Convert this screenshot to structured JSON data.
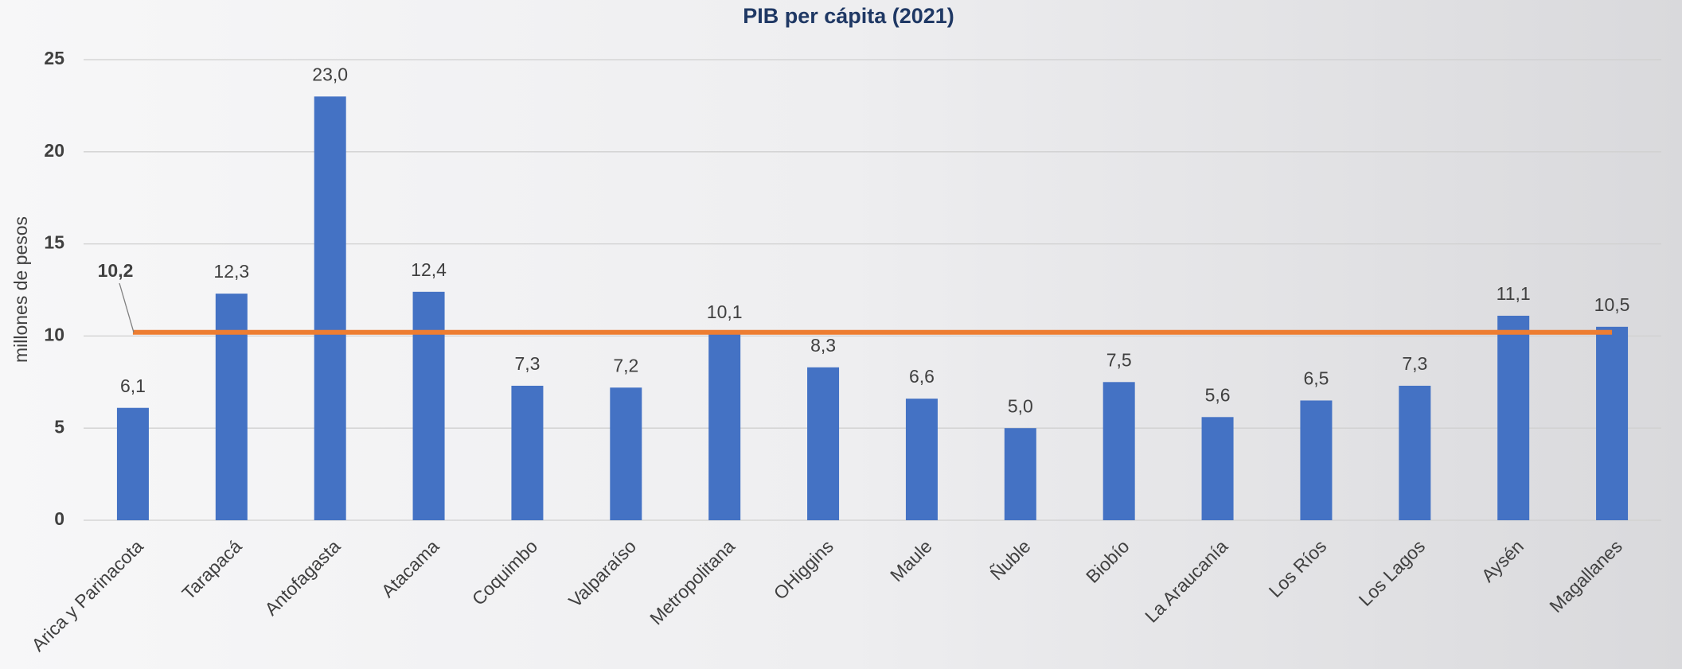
{
  "chart_data": {
    "type": "bar",
    "title": "PIB per cápita (2021)",
    "y_label": "millones de pesos",
    "categories": [
      "Arica y Parinacota",
      "Tarapacá",
      "Antofagasta",
      "Atacama",
      "Coquimbo",
      "Valparaíso",
      "Metropolitana",
      "OHiggins",
      "Maule",
      "Ñuble",
      "Biobío",
      "La Araucanía",
      "Los Ríos",
      "Los Lagos",
      "Aysén",
      "Magallanes"
    ],
    "values": [
      6.1,
      12.3,
      23.0,
      12.4,
      7.3,
      7.2,
      10.1,
      8.3,
      6.6,
      5.0,
      7.5,
      5.6,
      6.5,
      7.3,
      11.1,
      10.5
    ],
    "value_labels": [
      "6,1",
      "12,3",
      "23,0",
      "12,4",
      "7,3",
      "7,2",
      "10,1",
      "8,3",
      "6,6",
      "5,0",
      "7,5",
      "5,6",
      "6,5",
      "7,3",
      "11,1",
      "10,5"
    ],
    "color": "#4472c4",
    "reference_line": {
      "value": 10.2,
      "label": "10,2",
      "color": "#ed7d31"
    },
    "ylim": [
      0,
      25
    ],
    "yticks": [
      0,
      5,
      10,
      15,
      20,
      25
    ],
    "grid": true
  }
}
